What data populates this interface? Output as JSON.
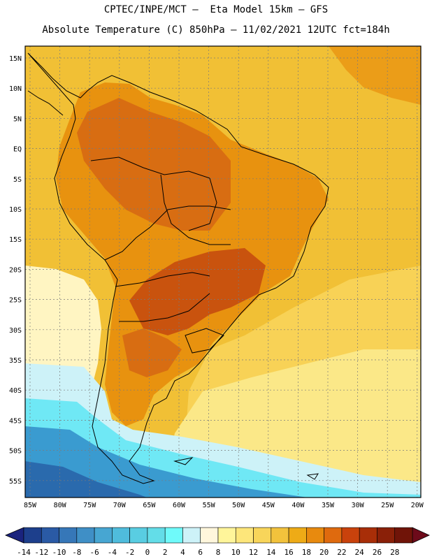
{
  "title_line1": "CPTEC/INPE/MCT –  Eta Model 15km – GFS",
  "title_line2": "Absolute Temperature (C) 850hPa – 11/02/2021 12UTC fct=184h",
  "lat_labels": [
    "15N",
    "10N",
    "5N",
    "EQ",
    "5S",
    "10S",
    "15S",
    "20S",
    "25S",
    "30S",
    "35S",
    "40S",
    "45S",
    "50S",
    "55S"
  ],
  "lon_labels": [
    "85W",
    "80W",
    "75W",
    "70W",
    "65W",
    "60W",
    "55W",
    "50W",
    "45W",
    "40W",
    "35W",
    "30W",
    "25W",
    "20W"
  ],
  "colorbar": {
    "labels": [
      "-14",
      "-12",
      "-10",
      "-8",
      "-6",
      "-4",
      "-2",
      "0",
      "2",
      "4",
      "6",
      "8",
      "10",
      "12",
      "14",
      "16",
      "18",
      "20",
      "22",
      "24",
      "26",
      "28"
    ],
    "colors": [
      "#1d3f8c",
      "#2a5aa5",
      "#3677b8",
      "#3f8fc6",
      "#47a6d2",
      "#4fbcdc",
      "#59cde2",
      "#63dde8",
      "#6ffafa",
      "#cdf2f8",
      "#fff6dc",
      "#fff59a",
      "#fde67a",
      "#f8d55a",
      "#f2c23c",
      "#eeab16",
      "#e88a0e",
      "#df6a0e",
      "#c9420c",
      "#a82e08",
      "#8a2008",
      "#701408"
    ],
    "left_arrow_color": "#1a237e",
    "right_arrow_color": "#6d0a1a"
  },
  "palette": {
    "ocean_warm": "#f1c035",
    "ocean_mid": "#f8d256",
    "ocean_light": "#fbe888",
    "ocean_pale": "#fff5c2",
    "cold_light": "#cdf2f8",
    "cold_cyan": "#6fe8f5",
    "cold_blue": "#3a9bd0",
    "cold_deep": "#2a6aad",
    "land_orange": "#e8920f",
    "land_dark": "#d86d12",
    "land_hot": "#c9530e"
  }
}
